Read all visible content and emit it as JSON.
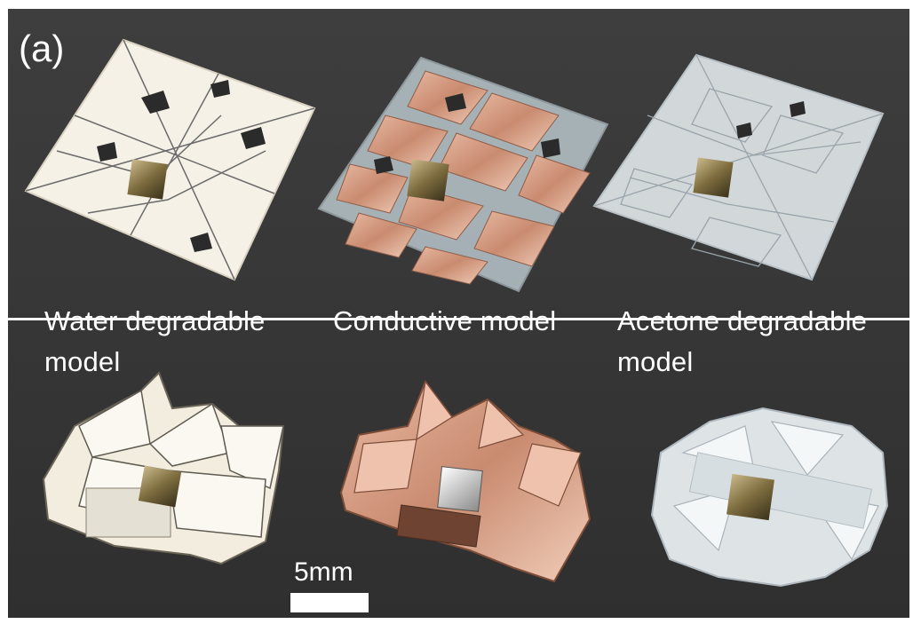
{
  "figure": {
    "panel_label": "(a)",
    "captions": {
      "water": "Water degradable model",
      "conductive": "Conductive model",
      "acetone": "Acetone degradable model"
    },
    "scale_bar": {
      "label": "5mm"
    }
  },
  "colors": {
    "background": "#3a3a3a",
    "water_sheet": "#f6f1e6",
    "conductive_sheet": "#d9a58e",
    "acetone_sheet": "#e7ecef",
    "magnet": "#8a7a4a",
    "text": "#ffffff"
  }
}
